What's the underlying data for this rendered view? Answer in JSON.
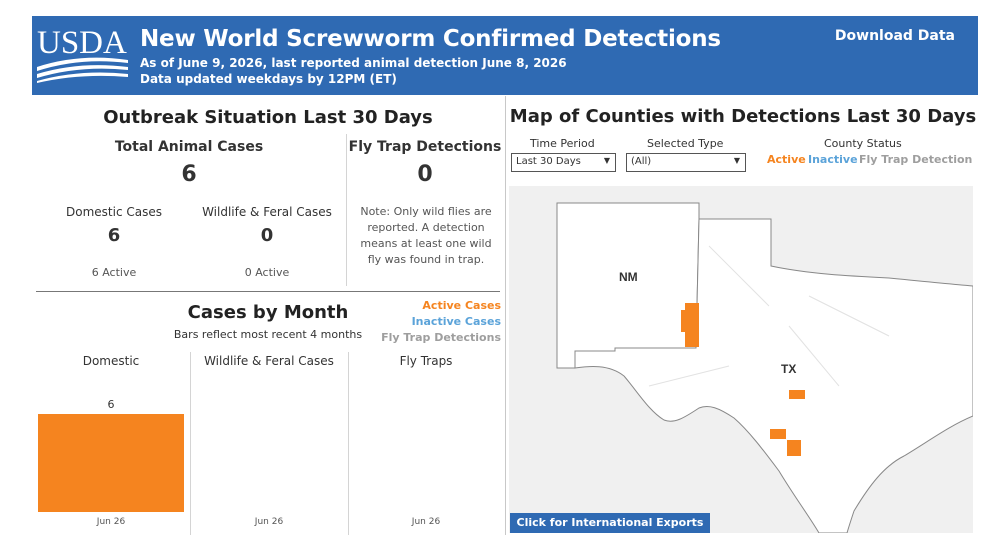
{
  "header": {
    "logo_text": "USDA",
    "title": "New World Screwworm Confirmed Detections",
    "subtitle_line1": "As of June 9, 2026, last reported animal detection June 8, 2026",
    "subtitle_line2": "Data updated weekdays by 12PM (ET)",
    "download_label": "Download Data"
  },
  "outbreak": {
    "heading": "Outbreak Situation Last 30 Days",
    "total_label": "Total Animal Cases",
    "total_value": "6",
    "domestic_label": "Domestic Cases",
    "domestic_value": "6",
    "domestic_active": "6 Active",
    "wildlife_label": "Wildlife & Feral Cases",
    "wildlife_value": "0",
    "wildlife_active": "0 Active",
    "flytrap_label": "Fly Trap Detections",
    "flytrap_value": "0",
    "flytrap_note": "Note: Only wild flies are reported. A detection means at least one wild fly was found in trap."
  },
  "cases_by_month": {
    "heading": "Cases by Month",
    "subheading": "Bars reflect most recent 4 months",
    "legend": [
      {
        "label": "Active Cases",
        "color": "#f5841f"
      },
      {
        "label": "Inactive Cases",
        "color": "#5ba3d9"
      },
      {
        "label": "Fly Trap Detections",
        "color": "#9e9e9e"
      }
    ],
    "columns": [
      {
        "label": "Domestic",
        "month": "Jun 26"
      },
      {
        "label": "Wildlife & Feral Cases",
        "month": "Jun 26"
      },
      {
        "label": "Fly Traps",
        "month": "Jun 26"
      }
    ]
  },
  "chart_data": {
    "type": "bar",
    "categories": [
      "Jun 26"
    ],
    "series": [
      {
        "name": "Domestic",
        "values": [
          6
        ]
      },
      {
        "name": "Wildlife & Feral Cases",
        "values": [
          0
        ]
      },
      {
        "name": "Fly Traps",
        "values": [
          0
        ]
      }
    ],
    "data_labels": [
      "6",
      "",
      ""
    ]
  },
  "map_panel": {
    "heading": "Map of Counties with Detections Last 30 Days",
    "time_period_label": "Time Period",
    "time_period_value": "Last 30 Days",
    "selected_type_label": "Selected Type",
    "selected_type_value": "(All)",
    "county_status_label": "County Status",
    "status_active": "Active",
    "status_inactive": "Inactive",
    "status_flytrap": "Fly Trap Detection",
    "state_nm": "NM",
    "state_tx": "TX",
    "exports_button": "Click for International Exports",
    "colors": {
      "active": "#f5841f",
      "inactive": "#5ba3d9",
      "flytrap": "#9e9e9e"
    }
  }
}
